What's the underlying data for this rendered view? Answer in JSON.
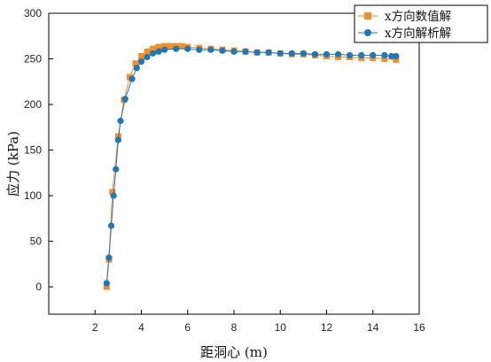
{
  "chart_data": {
    "type": "line",
    "title": "",
    "xlabel": "距洞心 (m)",
    "ylabel": "应力 (kPa)",
    "xlim": [
      0,
      16
    ],
    "ylim": [
      -30,
      300
    ],
    "xticks": [
      0,
      2,
      4,
      6,
      8,
      10,
      12,
      14,
      16
    ],
    "xtick_labels": [
      "",
      "2",
      "4",
      "6",
      "8",
      "10",
      "12",
      "14",
      "16"
    ],
    "yticks": [
      0,
      50,
      100,
      150,
      200,
      250,
      300
    ],
    "ytick_labels": [
      "0",
      "50",
      "100",
      "150",
      "200",
      "250",
      "300"
    ],
    "grid": false,
    "legend_position": "top-right",
    "series": [
      {
        "name": "x方向数值解",
        "marker": "square",
        "color": "#f28e2b",
        "x": [
          2.5,
          2.6,
          2.75,
          3.0,
          3.25,
          3.5,
          3.75,
          4.0,
          4.25,
          4.5,
          4.75,
          5.0,
          5.25,
          5.5,
          5.75,
          6.0,
          6.5,
          7.0,
          7.5,
          8.0,
          8.5,
          9.0,
          9.5,
          10.0,
          10.5,
          11.0,
          11.5,
          12.0,
          12.5,
          13.0,
          13.5,
          14.0,
          14.5,
          15.0
        ],
        "y": [
          0,
          30,
          104,
          165,
          205,
          230,
          245,
          253,
          258,
          261,
          263,
          264,
          264,
          264,
          264,
          263,
          262,
          261,
          260,
          259,
          258,
          257,
          257,
          256,
          255,
          255,
          254,
          253,
          252,
          252,
          251,
          251,
          250,
          249
        ]
      },
      {
        "name": "x方向解析解",
        "marker": "circle",
        "color": "#1f77b4",
        "x": [
          2.5,
          2.6,
          2.7,
          2.8,
          2.9,
          3.0,
          3.1,
          3.3,
          3.6,
          3.8,
          4.0,
          4.25,
          4.5,
          4.75,
          5.0,
          5.5,
          6.0,
          6.5,
          7.0,
          7.5,
          8.0,
          8.5,
          9.0,
          9.5,
          10.0,
          10.5,
          11.0,
          11.5,
          12.0,
          12.5,
          13.0,
          13.5,
          14.0,
          14.5,
          14.8,
          15.0
        ],
        "y": [
          4,
          32,
          67,
          100,
          129,
          161,
          182,
          206,
          228,
          240,
          247,
          252,
          256,
          258,
          260,
          261,
          261,
          260,
          260,
          259,
          258,
          258,
          257,
          257,
          256,
          256,
          256,
          255,
          255,
          255,
          254,
          254,
          254,
          254,
          253,
          253
        ]
      }
    ]
  }
}
